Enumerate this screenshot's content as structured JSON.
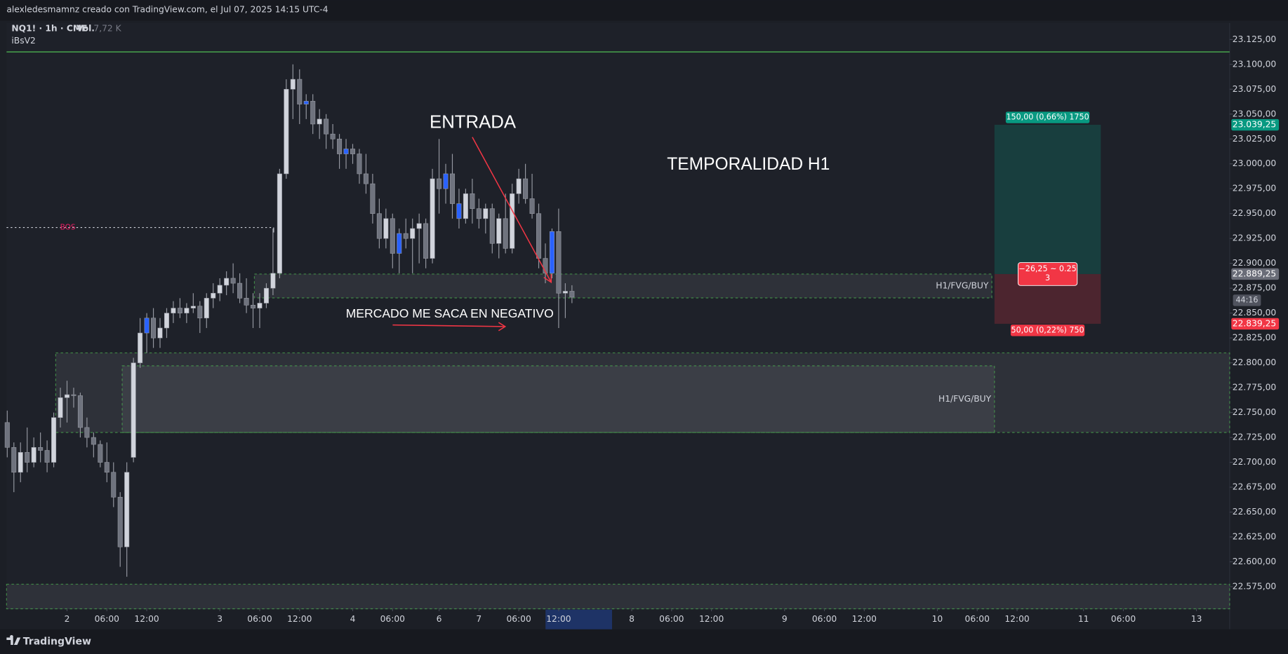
{
  "header": {
    "text": "alexledesmamnz creado con TradingView.com, el Jul 07, 2025 14:15 UTC-4"
  },
  "legend": {
    "symbol": "NQ1! · 1h · CME",
    "volume_label": "Vol.",
    "volume_value": "7,72 K",
    "indicator": "iBsV2"
  },
  "annotations": [
    "ENTRADA",
    "TEMPORALIDAD H1",
    "MERCADO ME SACA EN NEGATIVO"
  ],
  "footer": {
    "logo": "TradingView"
  },
  "chart_data": {
    "type": "candlestick",
    "x": [
      0,
      1,
      2,
      3,
      4,
      5,
      6,
      7,
      8,
      9,
      10,
      11,
      12,
      13,
      14,
      15,
      16,
      17,
      18,
      19,
      20,
      21,
      22,
      23,
      24,
      25,
      26,
      27,
      28,
      29,
      30,
      31,
      32,
      33,
      34,
      35,
      36,
      37,
      38,
      39,
      40,
      41,
      42,
      43,
      44,
      45,
      46,
      47,
      48,
      49,
      50,
      51,
      52,
      53,
      54,
      55,
      56,
      57,
      58,
      59,
      60,
      61,
      62,
      63,
      64,
      65,
      66,
      67,
      68,
      69,
      70,
      71,
      72,
      73,
      74,
      75,
      76,
      77,
      78,
      79,
      80,
      81,
      82,
      83,
      84,
      85
    ],
    "open": [
      22740,
      22715,
      22690,
      22710,
      22700,
      22715,
      22712,
      22700,
      22745,
      22765,
      22768,
      22767,
      22735,
      22725,
      22718,
      22700,
      22690,
      22665,
      22615,
      22705,
      22800,
      22830,
      22845,
      22825,
      22835,
      22850,
      22855,
      22850,
      22855,
      22857,
      22845,
      22865,
      22870,
      22878,
      22885,
      22880,
      22865,
      22858,
      22855,
      22860,
      22875,
      22890,
      22990,
      23075,
      23085,
      23060,
      23063,
      23040,
      23045,
      23030,
      23025,
      23010,
      23015,
      23010,
      22990,
      22980,
      22950,
      22925,
      22945,
      22910,
      22930,
      22925,
      22935,
      22940,
      22905,
      22985,
      22975,
      22990,
      22960,
      22945,
      22970,
      22955,
      22945,
      22955,
      22920,
      22945,
      22915,
      22970,
      22985,
      22965,
      22950,
      22905,
      22890,
      22932,
      22870,
      22872
    ],
    "high": [
      22752,
      22720,
      22720,
      22735,
      22725,
      22730,
      22722,
      22750,
      22775,
      22782,
      22775,
      22770,
      22745,
      22730,
      22722,
      22720,
      22700,
      22670,
      22700,
      22805,
      22845,
      22850,
      22855,
      22845,
      22855,
      22862,
      22865,
      22860,
      22870,
      22862,
      22870,
      22880,
      22885,
      22892,
      22900,
      22890,
      22885,
      22870,
      22870,
      22880,
      22935,
      22995,
      23085,
      23100,
      23095,
      23070,
      23070,
      23055,
      23050,
      23040,
      23030,
      23025,
      23020,
      23015,
      23010,
      22990,
      22965,
      22955,
      22950,
      22935,
      22945,
      22945,
      22950,
      22945,
      22995,
      23025,
      23000,
      23010,
      22975,
      22975,
      22985,
      22965,
      22960,
      22960,
      22950,
      22970,
      22980,
      22995,
      23000,
      22990,
      22960,
      22920,
      22935,
      22955,
      22880,
      22878
    ],
    "low": [
      22705,
      22670,
      22680,
      22690,
      22695,
      22700,
      22690,
      22695,
      22735,
      22740,
      22755,
      22725,
      22715,
      22705,
      22695,
      22680,
      22655,
      22595,
      22585,
      22700,
      22795,
      22810,
      22815,
      22815,
      22825,
      22840,
      22845,
      22840,
      22850,
      22830,
      22835,
      22855,
      22862,
      22868,
      22870,
      22860,
      22850,
      22835,
      22835,
      22855,
      22868,
      22885,
      22985,
      23045,
      23040,
      23045,
      23030,
      23025,
      23015,
      23015,
      22995,
      22995,
      23000,
      22980,
      22970,
      22940,
      22915,
      22915,
      22895,
      22890,
      22915,
      22890,
      22900,
      22895,
      22900,
      22950,
      22960,
      22945,
      22935,
      22940,
      22940,
      22935,
      22930,
      22910,
      22905,
      22910,
      22910,
      22960,
      22960,
      22945,
      22895,
      22880,
      22885,
      22835,
      22845,
      22860
    ],
    "close": [
      22715,
      22690,
      22710,
      22700,
      22715,
      22712,
      22700,
      22745,
      22765,
      22768,
      22767,
      22735,
      22725,
      22718,
      22700,
      22690,
      22665,
      22615,
      22690,
      22800,
      22830,
      22845,
      22825,
      22835,
      22850,
      22855,
      22850,
      22855,
      22857,
      22845,
      22865,
      22870,
      22878,
      22885,
      22880,
      22865,
      22858,
      22855,
      22860,
      22875,
      22890,
      22990,
      23075,
      23085,
      23060,
      23063,
      23040,
      23045,
      23030,
      23025,
      23010,
      23015,
      23010,
      22990,
      22980,
      22950,
      22925,
      22945,
      22910,
      22930,
      22925,
      22935,
      22940,
      22905,
      22985,
      22975,
      22990,
      22960,
      22945,
      22970,
      22955,
      22945,
      22955,
      22920,
      22945,
      22915,
      22970,
      22985,
      22965,
      22950,
      22905,
      22890,
      22932,
      22870,
      22872,
      22866
    ],
    "up_color": "#d1d4dc",
    "down_color": "#6f737e",
    "highlight_color": "#2962ff",
    "highlight": [
      21,
      45,
      51,
      59,
      66,
      68,
      82
    ],
    "xlim": [
      -0.1,
      184
    ],
    "xticks": [
      {
        "value": 9,
        "label": "2"
      },
      {
        "value": 15,
        "label": "06:00"
      },
      {
        "value": 21,
        "label": "12:00"
      },
      {
        "value": 32,
        "label": "3"
      },
      {
        "value": 38,
        "label": "06:00"
      },
      {
        "value": 44,
        "label": "12:00"
      },
      {
        "value": 52,
        "label": "4"
      },
      {
        "value": 58,
        "label": "06:00"
      },
      {
        "value": 65,
        "label": "6"
      },
      {
        "value": 71,
        "label": "7"
      },
      {
        "value": 77,
        "label": "06:00"
      },
      {
        "value": 83,
        "label": "12:00"
      },
      {
        "value": 94,
        "label": "8"
      },
      {
        "value": 100,
        "label": "06:00"
      },
      {
        "value": 106,
        "label": "12:00"
      },
      {
        "value": 117,
        "label": "9"
      },
      {
        "value": 123,
        "label": "06:00"
      },
      {
        "value": 129,
        "label": "12:00"
      },
      {
        "value": 140,
        "label": "10"
      },
      {
        "value": 146,
        "label": "06:00"
      },
      {
        "value": 152,
        "label": "12:00"
      },
      {
        "value": 162,
        "label": "11"
      },
      {
        "value": 168,
        "label": "06:00"
      },
      {
        "value": 179,
        "label": "13"
      }
    ],
    "highlight_xtick": 11,
    "ylim": [
      22552.8,
      23141.5
    ],
    "yticks": [
      {
        "value": 22575,
        "label": "22.575,00"
      },
      {
        "value": 22600,
        "label": "22.600,00"
      },
      {
        "value": 22625,
        "label": "22.625,00"
      },
      {
        "value": 22650,
        "label": "22.650,00"
      },
      {
        "value": 22675,
        "label": "22.675,00"
      },
      {
        "value": 22700,
        "label": "22.700,00"
      },
      {
        "value": 22725,
        "label": "22.725,00"
      },
      {
        "value": 22750,
        "label": "22.750,00"
      },
      {
        "value": 22775,
        "label": "22.775,00"
      },
      {
        "value": 22800,
        "label": "22.800,00"
      },
      {
        "value": 22825,
        "label": "22.825,00"
      },
      {
        "value": 22850,
        "label": "22.850,00"
      },
      {
        "value": 22875,
        "label": "22.875,00"
      },
      {
        "value": 22900,
        "label": "22.900,00"
      },
      {
        "value": 22925,
        "label": "22.925,00"
      },
      {
        "value": 22950,
        "label": "22.950,00"
      },
      {
        "value": 22975,
        "label": "22.975,00"
      },
      {
        "value": 23000,
        "label": "23.000,00"
      },
      {
        "value": 23025,
        "label": "23.025,00"
      },
      {
        "value": 23050,
        "label": "23.050,00"
      },
      {
        "value": 23075,
        "label": "23.075,00"
      },
      {
        "value": 23100,
        "label": "23.100,00"
      },
      {
        "value": 23125,
        "label": "23.125,00"
      }
    ],
    "horizontal_line": {
      "value": 23112.5,
      "color": "#4caf50"
    },
    "bos": {
      "label": "BOS",
      "value": 22936,
      "x": [
        -0.1,
        40.1
      ],
      "color": "#e91e63"
    },
    "zones": [
      {
        "label": "H1/FVG/BUY",
        "top": 22889.25,
        "bottom": 22865.25,
        "x": [
          37.2,
          148.2
        ]
      },
      {
        "top": 22810,
        "bottom": 22730,
        "x": [
          7.3,
          184
        ]
      },
      {
        "label": "H1/FVG/BUY",
        "top": 22797,
        "bottom": 22730,
        "x": [
          17.3,
          148.6
        ]
      },
      {
        "top": 22577.5,
        "bottom": 22552.8,
        "x": [
          -0.1,
          184
        ]
      }
    ],
    "position": {
      "x": [
        148.6,
        164.6
      ],
      "target": {
        "value": 23039.25,
        "label": "23.039,25",
        "text": "150,00 (0,66%) 1750"
      },
      "entry": {
        "value": 22889.25,
        "label": "22.889,25",
        "text": [
          "−26,25 ~ 0.25",
          "3"
        ]
      },
      "stop": {
        "value": 22839.25,
        "label": "22.839,25",
        "text": "50,00 (0,22%) 750"
      }
    },
    "countdown": "44:16"
  }
}
